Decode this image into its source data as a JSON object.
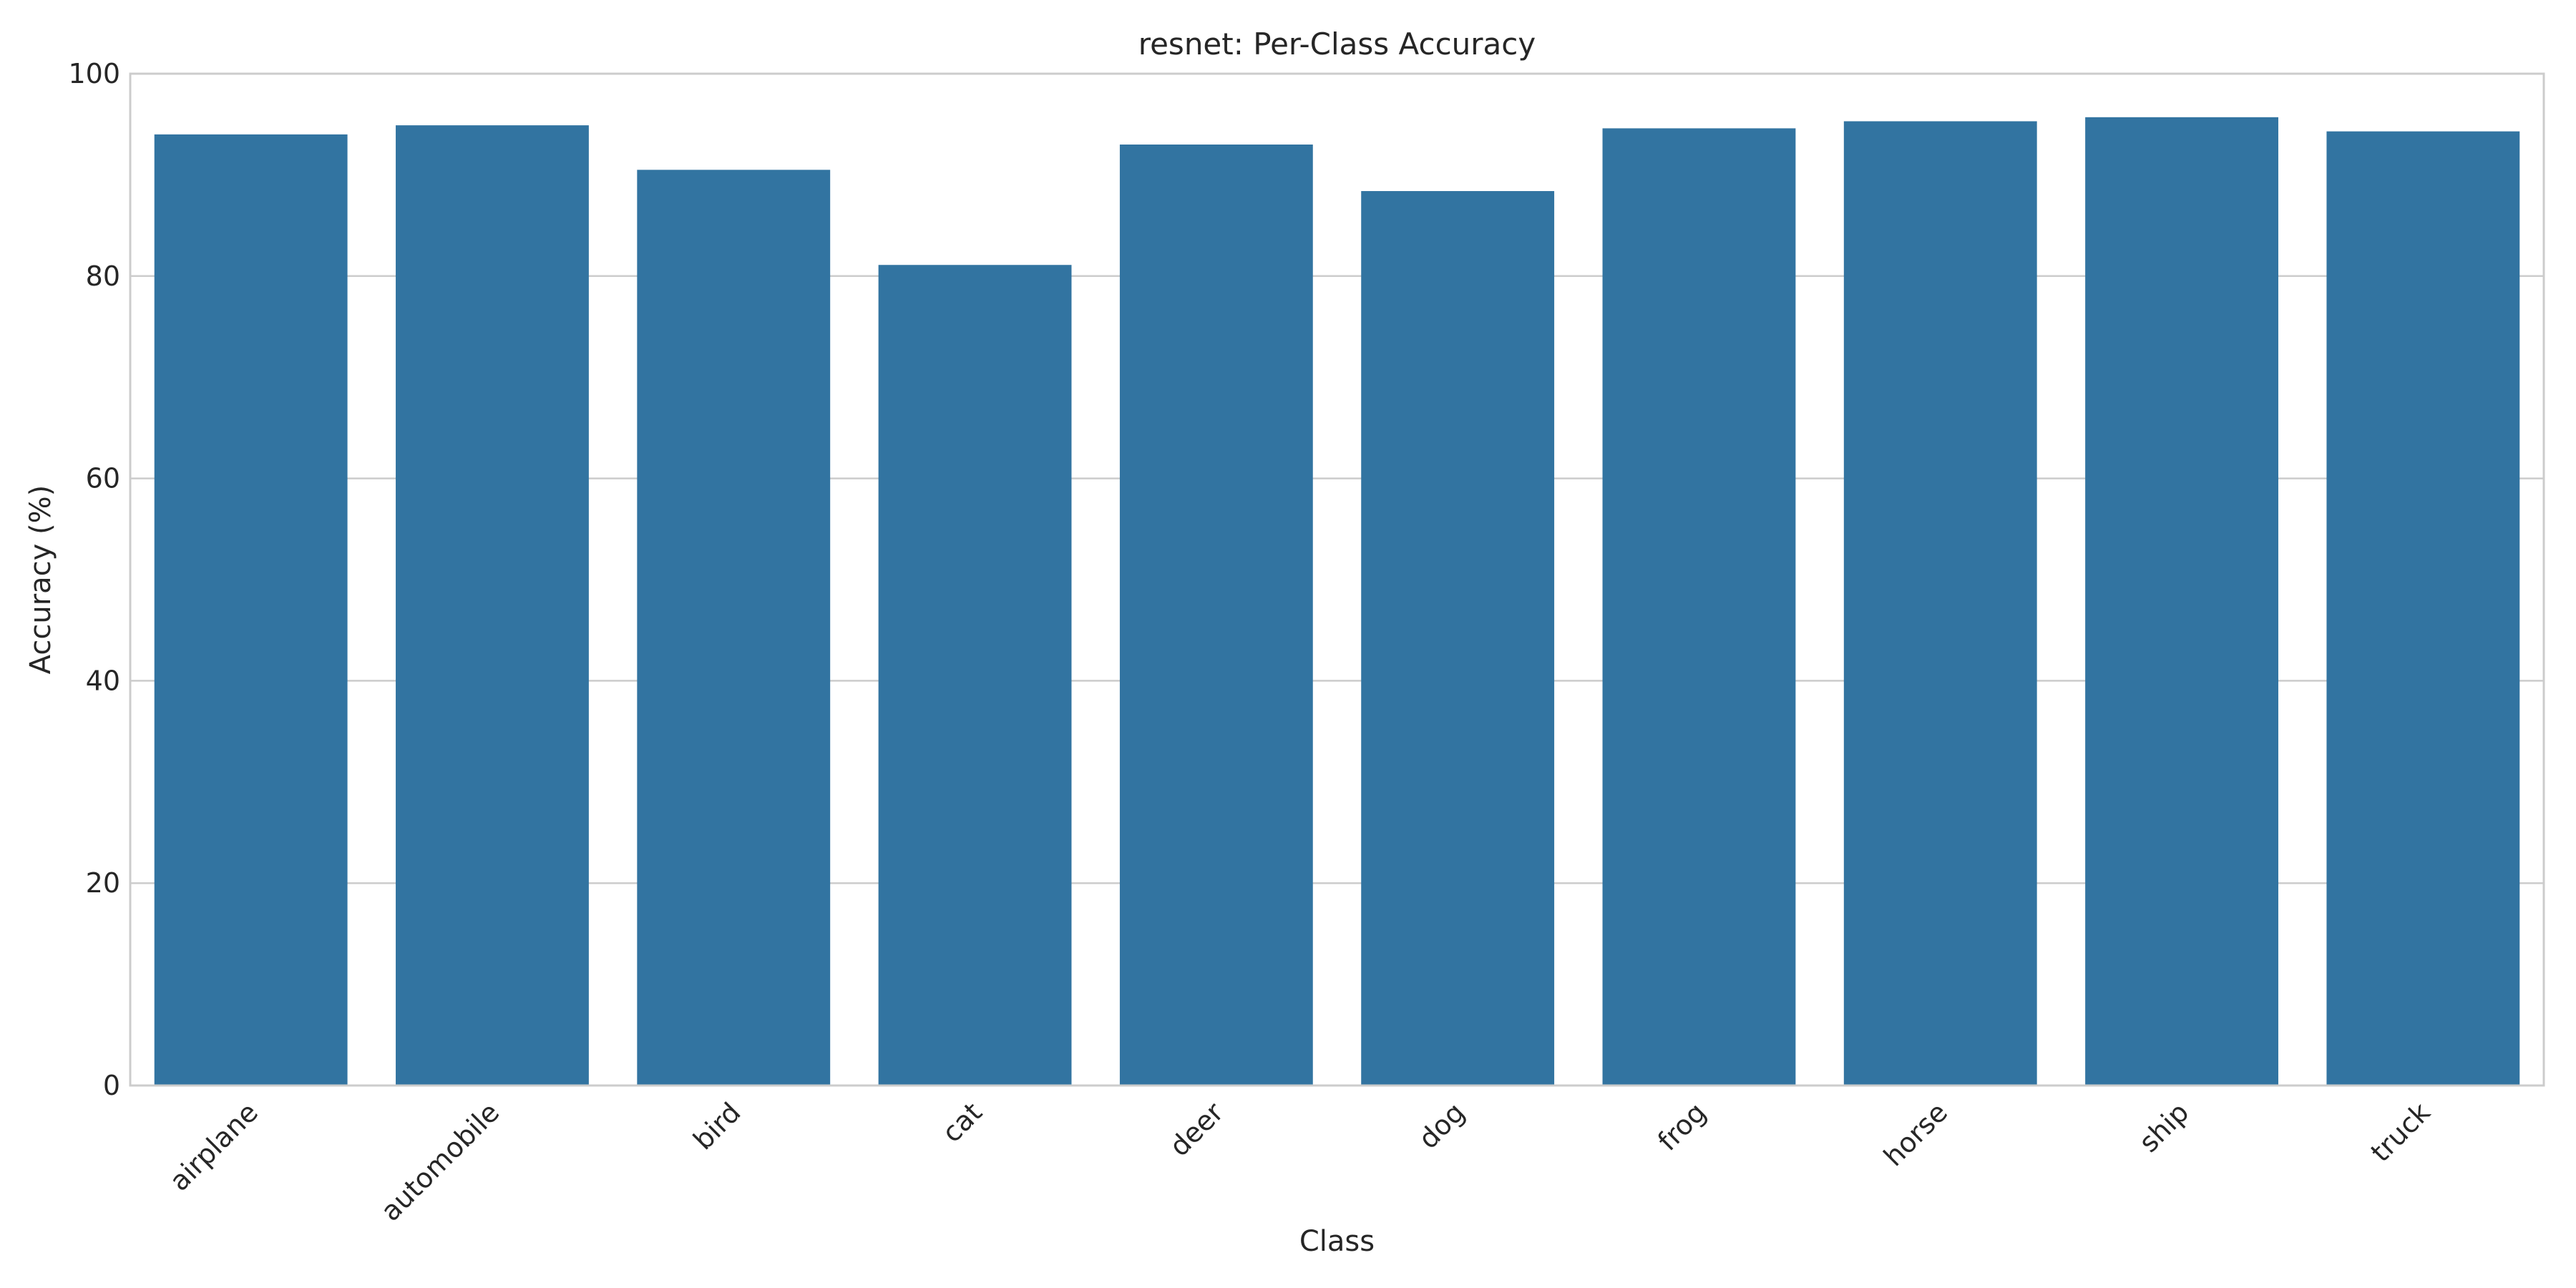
{
  "chart_data": {
    "type": "bar",
    "title": "resnet: Per-Class Accuracy",
    "xlabel": "Class",
    "ylabel": "Accuracy (%)",
    "categories": [
      "airplane",
      "automobile",
      "bird",
      "cat",
      "deer",
      "dog",
      "frog",
      "horse",
      "ship",
      "truck"
    ],
    "values": [
      94.0,
      94.9,
      90.5,
      81.1,
      93.0,
      88.4,
      94.6,
      95.3,
      95.7,
      94.3
    ],
    "ylim": [
      0,
      100
    ],
    "yticks": [
      0,
      20,
      40,
      60,
      80,
      100
    ],
    "bar_color": "#3274a1",
    "grid": true,
    "xtick_rotation_deg": 45
  }
}
